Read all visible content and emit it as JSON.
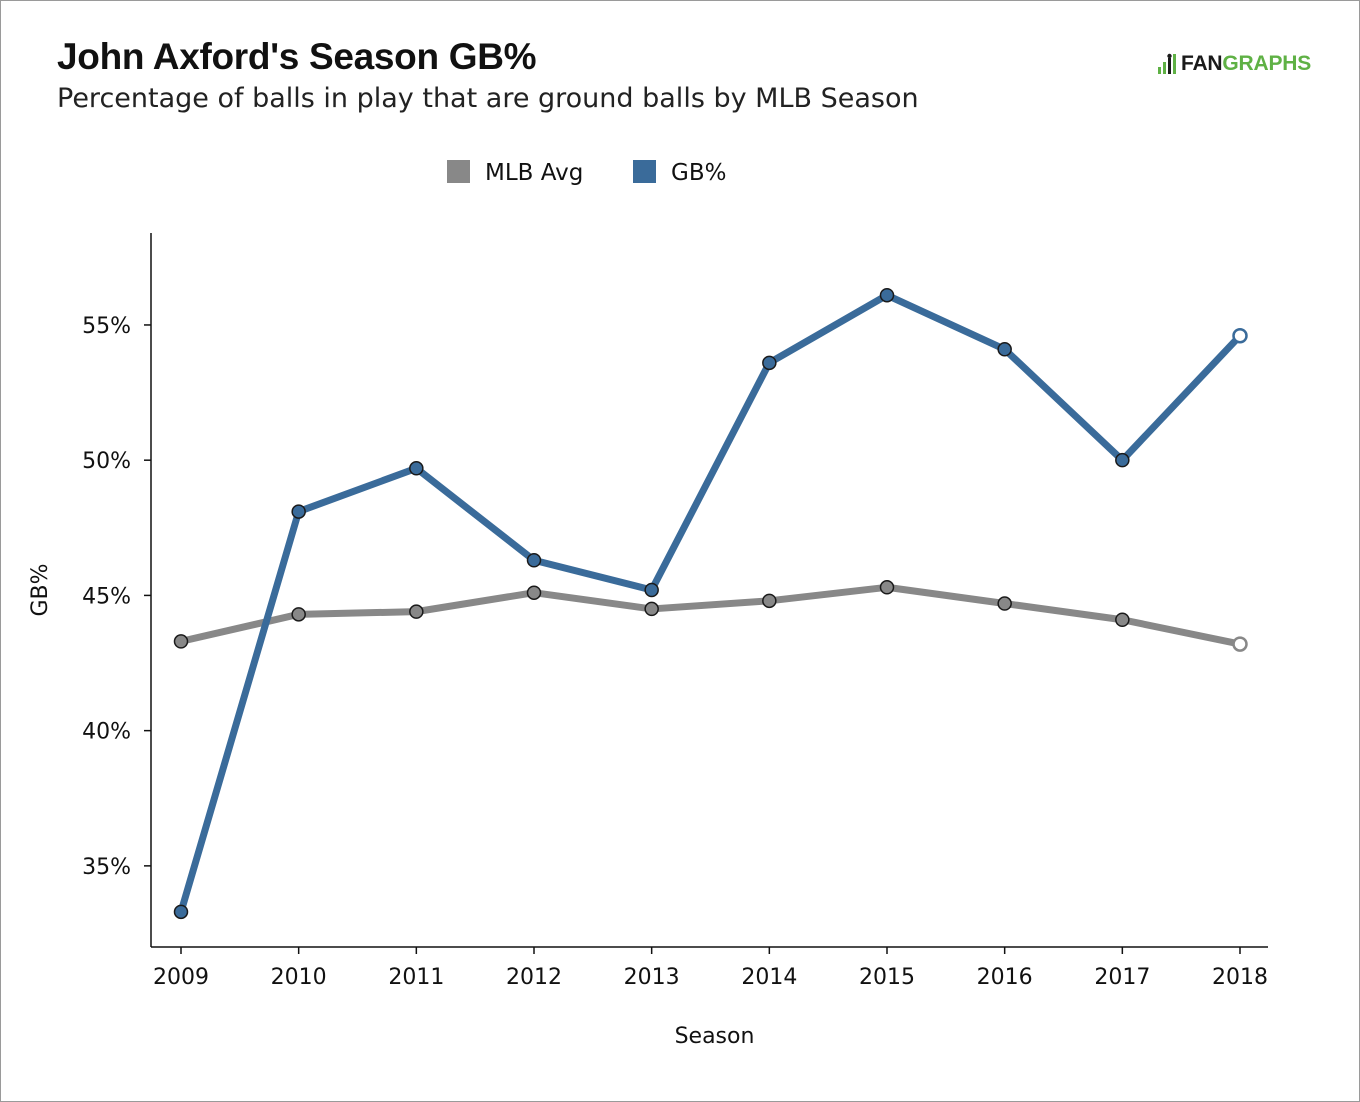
{
  "header": {
    "title": "John Axford's Season GB%",
    "subtitle": "Percentage of balls in play that are ground balls by MLB Season"
  },
  "logo": {
    "part1": "FAN",
    "part2": "GRAPHS",
    "accent": "#5fb145"
  },
  "chart_data": {
    "type": "line",
    "xlabel": "Season",
    "ylabel": "GB%",
    "x": [
      2009,
      2010,
      2011,
      2012,
      2013,
      2014,
      2015,
      2016,
      2017,
      2018
    ],
    "ylim": [
      32,
      58.4
    ],
    "yticks": [
      35,
      40,
      45,
      50,
      55
    ],
    "ytick_format": "%",
    "legend_position": "top-center",
    "grid": false,
    "series": [
      {
        "name": "MLB Avg",
        "color": "#888888",
        "values": [
          43.3,
          44.3,
          44.4,
          45.1,
          44.5,
          44.8,
          45.3,
          44.7,
          44.1,
          43.2
        ]
      },
      {
        "name": "GB%",
        "color": "#3a6b9a",
        "values": [
          33.3,
          48.1,
          49.7,
          46.3,
          45.2,
          53.6,
          56.1,
          54.1,
          50.0,
          54.6
        ]
      }
    ],
    "last_point_hollow": true
  }
}
